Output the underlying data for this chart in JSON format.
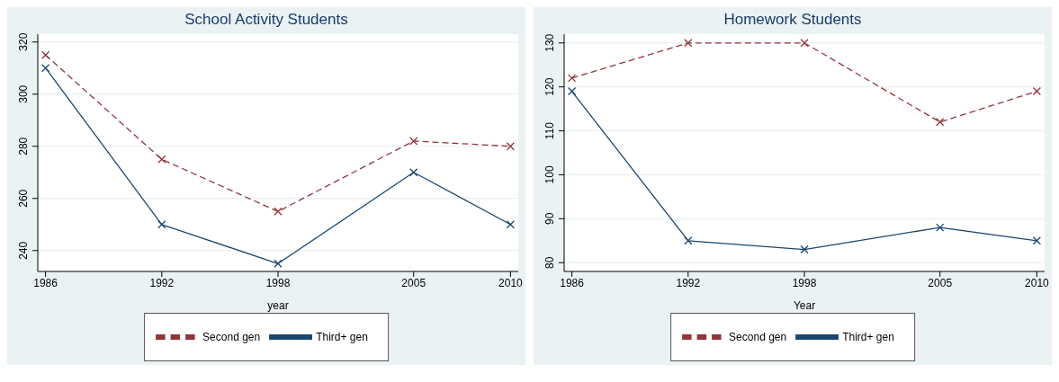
{
  "chart_data": [
    {
      "type": "line",
      "title": "School Activity Students",
      "xlabel": "year",
      "x": [
        1986,
        1992,
        1998,
        2005,
        2010
      ],
      "xlim": [
        1985.6,
        2010.4
      ],
      "xticks": [
        1986,
        1992,
        1998,
        2005,
        2010
      ],
      "ylim": [
        232,
        323
      ],
      "yticks": [
        240,
        260,
        280,
        300,
        320
      ],
      "grid": "y",
      "legend": "bottom",
      "marker": "cross",
      "series": [
        {
          "name": "Third+ gen",
          "color": "#1a476f",
          "line_style": "solid",
          "values": [
            310,
            250,
            235,
            270,
            250
          ]
        },
        {
          "name": "Second gen",
          "color": "#90353b",
          "line_style": "dashed",
          "values": [
            315,
            275,
            255,
            282,
            280
          ]
        }
      ]
    },
    {
      "type": "line",
      "title": "Homework Students",
      "xlabel": "Year",
      "x": [
        1986,
        1992,
        1998,
        2005,
        2010
      ],
      "xlim": [
        1985.6,
        2010.4
      ],
      "xticks": [
        1986,
        1992,
        1998,
        2005,
        2010
      ],
      "ylim": [
        78,
        132
      ],
      "yticks": [
        80,
        90,
        100,
        110,
        120,
        130
      ],
      "grid": "y",
      "legend": "bottom",
      "marker": "cross",
      "series": [
        {
          "name": "Third+ gen",
          "color": "#1a476f",
          "line_style": "solid",
          "values": [
            119,
            85,
            83,
            88,
            85
          ]
        },
        {
          "name": "Second gen",
          "color": "#90353b",
          "line_style": "dashed",
          "values": [
            122,
            130,
            130,
            112,
            119
          ]
        }
      ]
    }
  ]
}
